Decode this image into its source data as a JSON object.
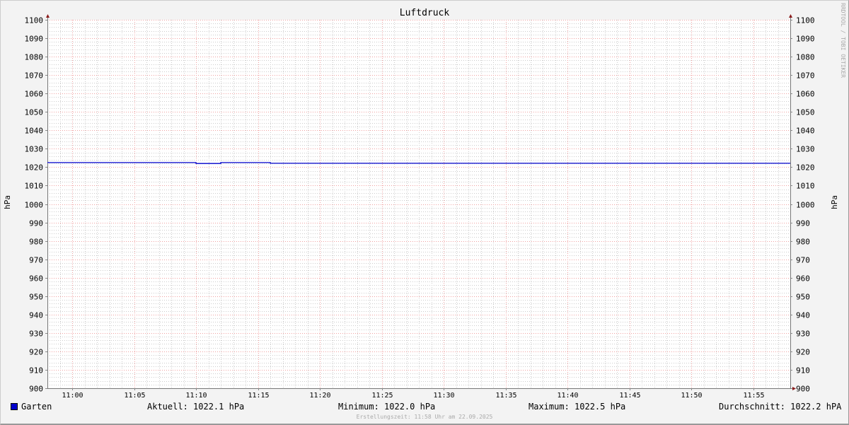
{
  "chart_data": {
    "type": "line",
    "title": "Luftdruck",
    "ylabel": "hPa",
    "ylim": [
      900,
      1100
    ],
    "yticks": [
      900,
      910,
      920,
      930,
      940,
      950,
      960,
      970,
      980,
      990,
      1000,
      1010,
      1020,
      1030,
      1040,
      1050,
      1060,
      1070,
      1080,
      1090,
      1100
    ],
    "xlim": [
      "10:58",
      "11:58"
    ],
    "xticks": [
      "11:00",
      "11:05",
      "11:10",
      "11:15",
      "11:20",
      "11:25",
      "11:30",
      "11:35",
      "11:40",
      "11:45",
      "11:50",
      "11:55"
    ],
    "grid": true,
    "series": [
      {
        "name": "Garten",
        "color": "#0000cc",
        "x": [
          "10:58",
          "11:10",
          "11:10",
          "11:12",
          "11:12",
          "11:16",
          "11:16",
          "11:58"
        ],
        "y": [
          1022.5,
          1022.5,
          1022.0,
          1022.0,
          1022.5,
          1022.5,
          1022.1,
          1022.1
        ]
      }
    ],
    "legend": {
      "position": "bottom",
      "name": "Garten",
      "current": "Aktuell: 1022.1 hPa",
      "minimum": "Minimum: 1022.0 hPa",
      "maximum": "Maximum: 1022.5 hPa",
      "average": "Durchschnitt: 1022.2 hPA"
    },
    "credit": "RRDTOOL / TOBI OETIKER",
    "footer": "Erstellungszeit: 11:58 Uhr am 22.09.2025"
  }
}
